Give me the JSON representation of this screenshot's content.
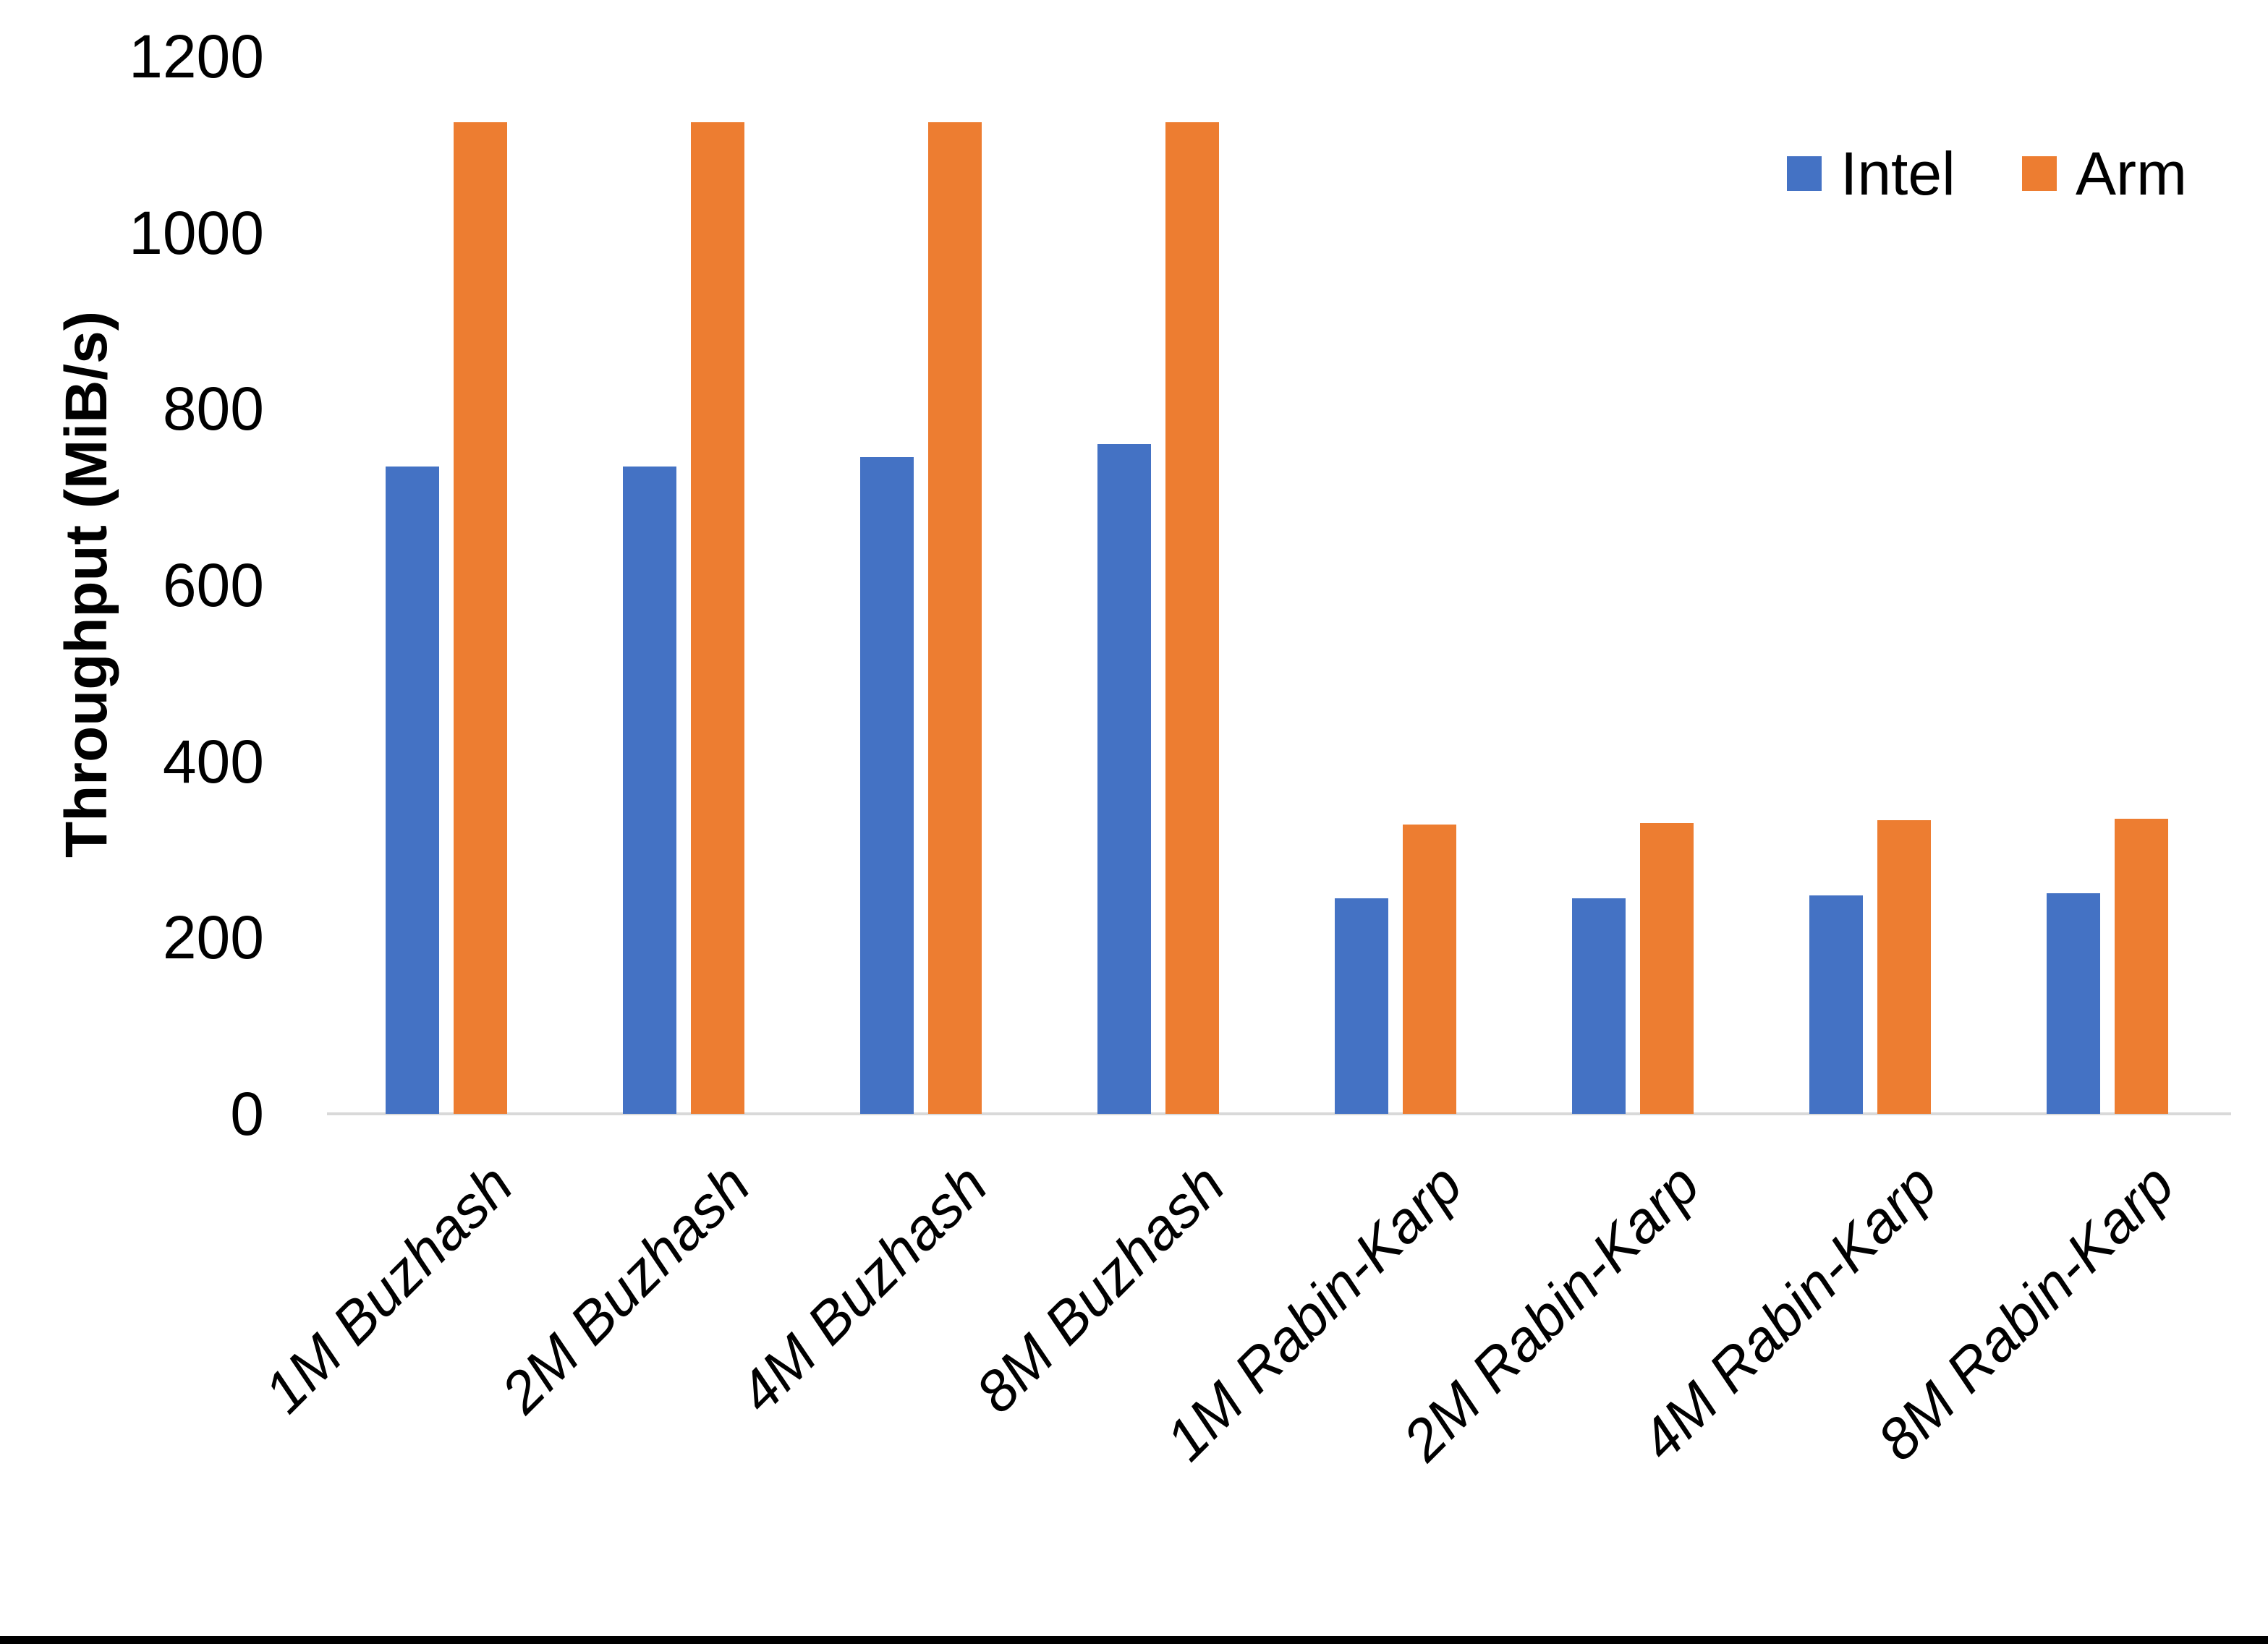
{
  "chart_data": {
    "type": "bar",
    "title": "",
    "xlabel": "",
    "ylabel": "Throughput (MiB/s)",
    "ylim": [
      0,
      1200
    ],
    "yticks": [
      0,
      200,
      400,
      600,
      800,
      1000,
      1200
    ],
    "grid": false,
    "legend_position": "top-right",
    "categories": [
      "1M Buzhash",
      "2M Buzhash",
      "4M Buzhash",
      "8M Buzhash",
      "1M Rabin-Karp",
      "2M Rabin-Karp",
      "4M Rabin-Karp",
      "8M Rabin-Karp"
    ],
    "series": [
      {
        "name": "Intel",
        "color": "#4472C4",
        "values": [
          735,
          735,
          745,
          760,
          245,
          245,
          248,
          250
        ]
      },
      {
        "name": "Arm",
        "color": "#ED7D31",
        "values": [
          1125,
          1125,
          1125,
          1125,
          328,
          330,
          333,
          335
        ]
      }
    ]
  },
  "style": {
    "axis_line_color": "#D9D9D9",
    "text_color": "#000000",
    "bottom_border_color": "#000000",
    "background": "#FFFFFF"
  }
}
